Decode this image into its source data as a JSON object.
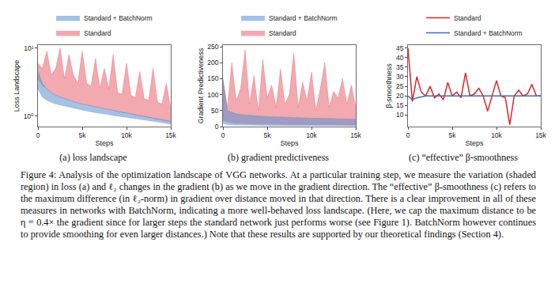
{
  "chart_data": [
    {
      "type": "band",
      "title": "(a) loss landscape",
      "x_label": "Steps",
      "y_label": "Loss Landscape",
      "log": "y",
      "grid": false,
      "legend": "top",
      "x": [
        0,
        500,
        1000,
        1500,
        2000,
        2500,
        3000,
        3500,
        4000,
        4500,
        5000,
        5500,
        6000,
        6500,
        7000,
        7500,
        8000,
        8500,
        9000,
        9500,
        10000,
        10500,
        11000,
        11500,
        12000,
        12500,
        13000,
        13500,
        14000,
        14500,
        15000
      ],
      "xlim": [
        0,
        15000
      ],
      "xticks": [
        0,
        {
          "value": 5000,
          "label": "5k"
        },
        {
          "value": 10000,
          "label": "10k"
        },
        {
          "value": 15000,
          "label": "15k"
        }
      ],
      "ylim": [
        0.7,
        11
      ],
      "yticks": [
        {
          "value": 1,
          "label": "10⁰"
        },
        {
          "value": 10,
          "label": "10¹"
        }
      ],
      "series": [
        {
          "name": "Standard",
          "color": "#e8636f",
          "lower": [
            3.5,
            2.8,
            2.5,
            2.2,
            2,
            1.9,
            1.8,
            1.7,
            1.6,
            1.55,
            1.5,
            1.45,
            1.4,
            1.35,
            1.3,
            1.28,
            1.25,
            1.2,
            1.15,
            1.12,
            1.1,
            1.06,
            1.03,
            1.0,
            0.98,
            0.95,
            0.93,
            0.9,
            0.88,
            0.85,
            0.82
          ],
          "upper": [
            6,
            5,
            9,
            4,
            5,
            10,
            3.5,
            8,
            4,
            3,
            9,
            3,
            2.8,
            7,
            2.6,
            5,
            2.5,
            8,
            2.2,
            2.1,
            6,
            2,
            1.9,
            4.5,
            1.8,
            1.7,
            5,
            1.6,
            1.5,
            3,
            1.3
          ]
        },
        {
          "name": "Standard + BatchNorm",
          "color": "#5b8fd0",
          "lower": [
            2.5,
            1.9,
            1.7,
            1.6,
            1.5,
            1.45,
            1.4,
            1.35,
            1.3,
            1.26,
            1.22,
            1.18,
            1.15,
            1.12,
            1.1,
            1.07,
            1.05,
            1.02,
            1.0,
            0.98,
            0.96,
            0.94,
            0.92,
            0.9,
            0.88,
            0.86,
            0.84,
            0.82,
            0.8,
            0.78,
            0.76
          ],
          "upper": [
            4.5,
            3,
            2.5,
            2.2,
            2,
            1.9,
            1.8,
            1.7,
            1.6,
            1.55,
            1.5,
            1.45,
            1.4,
            1.35,
            1.3,
            1.28,
            1.25,
            1.2,
            1.17,
            1.14,
            1.11,
            1.08,
            1.05,
            1.02,
            1.0,
            0.97,
            0.95,
            0.92,
            0.9,
            0.87,
            0.84
          ]
        }
      ]
    },
    {
      "type": "band",
      "title": "(b) gradient predictiveness",
      "x_label": "Steps",
      "y_label": "Gradient Predictiveness",
      "grid": false,
      "legend": "top",
      "x": [
        0,
        500,
        1000,
        1500,
        2000,
        2500,
        3000,
        3500,
        4000,
        4500,
        5000,
        5500,
        6000,
        6500,
        7000,
        7500,
        8000,
        8500,
        9000,
        9500,
        10000,
        10500,
        11000,
        11500,
        12000,
        12500,
        13000,
        13500,
        14000,
        14500,
        15000
      ],
      "xlim": [
        0,
        15000
      ],
      "xticks": [
        0,
        {
          "value": 5000,
          "label": "5k"
        },
        {
          "value": 10000,
          "label": "10k"
        },
        {
          "value": 15000,
          "label": "15k"
        }
      ],
      "ylim": [
        0,
        255
      ],
      "yticks": [
        0,
        50,
        100,
        150,
        200,
        250
      ],
      "series": [
        {
          "name": "Standard",
          "color": "#e8636f",
          "lower": [
            20,
            15,
            12,
            10,
            10,
            9,
            9,
            8,
            8,
            8,
            7,
            7,
            7,
            7,
            6,
            6,
            6,
            6,
            6,
            5,
            5,
            5,
            5,
            5,
            5,
            5,
            5,
            5,
            4,
            4,
            4
          ],
          "upper": [
            150,
            60,
            200,
            80,
            120,
            240,
            70,
            160,
            50,
            210,
            90,
            130,
            60,
            180,
            70,
            100,
            230,
            60,
            140,
            80,
            170,
            50,
            120,
            200,
            60,
            110,
            90,
            150,
            70,
            130,
            60
          ]
        },
        {
          "name": "Standard + BatchNorm",
          "color": "#5b8fd0",
          "lower": [
            10,
            6,
            5,
            5,
            4,
            4,
            4,
            4,
            4,
            4,
            3,
            3,
            3,
            3,
            3,
            3,
            3,
            3,
            3,
            3,
            3,
            3,
            3,
            3,
            3,
            3,
            3,
            3,
            3,
            3,
            3
          ],
          "upper": [
            145,
            50,
            45,
            40,
            38,
            36,
            35,
            34,
            33,
            32,
            32,
            31,
            30,
            30,
            29,
            29,
            28,
            28,
            27,
            27,
            26,
            26,
            26,
            25,
            25,
            25,
            24,
            24,
            24,
            23,
            23
          ]
        }
      ]
    },
    {
      "type": "line",
      "title": "(c) “effective” β-smoothness",
      "x_label": "Steps",
      "y_label": "β-smoothness",
      "grid": false,
      "legend": "top",
      "x": [
        0,
        500,
        1000,
        1500,
        2000,
        2500,
        3000,
        3500,
        4000,
        4500,
        5000,
        5500,
        6000,
        6500,
        7000,
        7500,
        8000,
        8500,
        9000,
        9500,
        10000,
        10500,
        11000,
        11500,
        12000,
        12500,
        13000,
        13500,
        14000,
        14500,
        15000
      ],
      "xlim": [
        0,
        15000
      ],
      "xticks": [
        0,
        {
          "value": 5000,
          "label": "5k"
        },
        {
          "value": 10000,
          "label": "10k"
        },
        {
          "value": 15000,
          "label": "15k"
        }
      ],
      "ylim": [
        4,
        46.5
      ],
      "yticks": [
        10,
        15,
        20,
        25,
        30,
        35,
        40,
        45
      ],
      "series": [
        {
          "name": "Standard",
          "color": "#d62728",
          "values": [
            45,
            17,
            30,
            22,
            20,
            25,
            19,
            21,
            18,
            27,
            20,
            22,
            19,
            32,
            20,
            21,
            24,
            20,
            12,
            20,
            28,
            20,
            19,
            5,
            20,
            23,
            20,
            21,
            26,
            20,
            20
          ]
        },
        {
          "name": "Standard + BatchNorm",
          "color": "#3b6fb6",
          "values": [
            20,
            18,
            19,
            19.5,
            20,
            20,
            20,
            20,
            20,
            20,
            20,
            20,
            20,
            20,
            20,
            20,
            20,
            20,
            20,
            20,
            20,
            20,
            20,
            20,
            20,
            20,
            20,
            20,
            20,
            20,
            20
          ]
        }
      ]
    }
  ],
  "caption": "Figure 4: Analysis of the optimization landscape of VGG networks. At a particular training step, we measure the variation (shaded region) in loss (a) and ℓ₂ changes in the gradient (b) as we move in the gradient direction. The “effective” β-smoothness (c) refers to the maximum difference (in ℓ₂-norm) in gradient over distance moved in that direction. There is a clear improvement in all of these measures in networks with BatchNorm, indicating a more well-behaved loss landscape. (Here, we cap the maximum distance to be η = 0.4× the gradient since for larger steps the standard network just performs worse (see Figure 1). BatchNorm however continues to provide smoothing for even larger distances.) Note that these results are supported by our theoretical findings (Section 4)."
}
